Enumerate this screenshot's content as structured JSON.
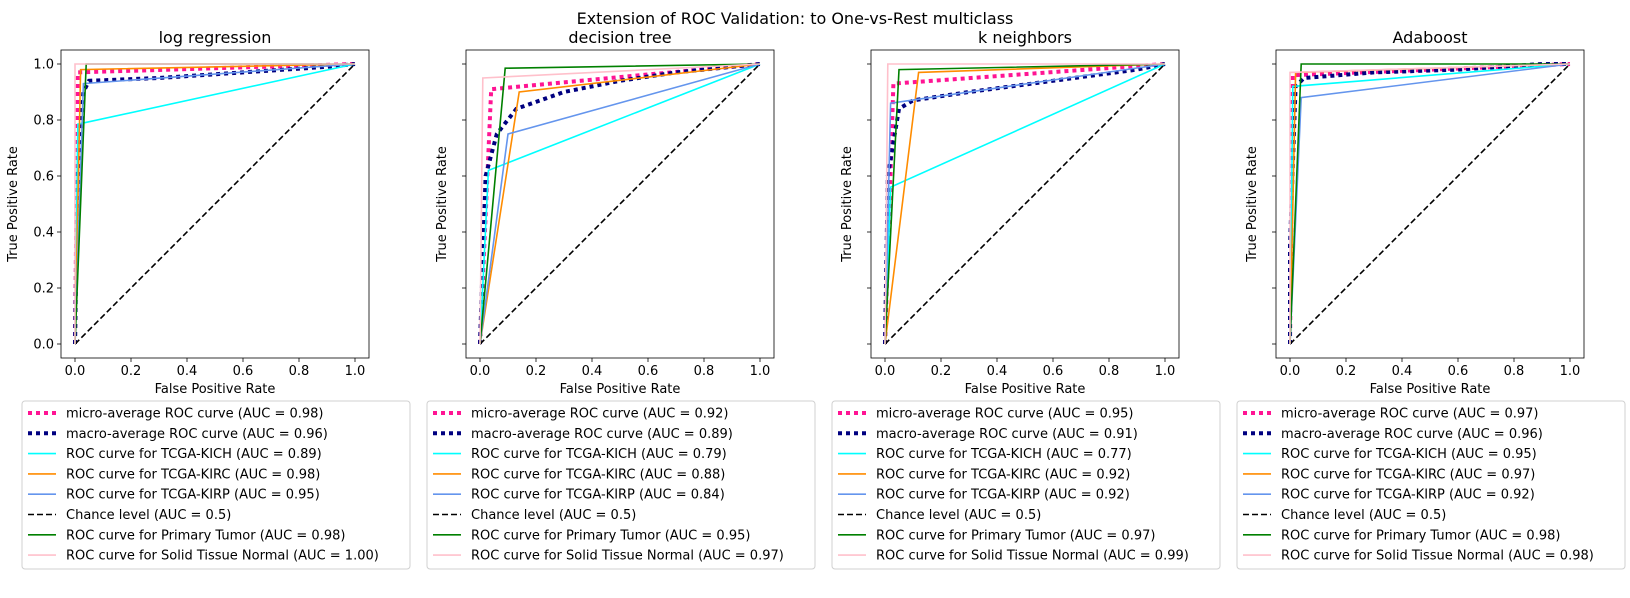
{
  "suptitle": "Extension of ROC Validation: to One-vs-Rest multiclass",
  "chart_data": [
    {
      "type": "line",
      "title": "log regression",
      "xlabel": "False Positive Rate",
      "ylabel": "True Positive Rate",
      "xlim": [
        -0.05,
        1.05
      ],
      "ylim": [
        -0.05,
        1.05
      ],
      "xticks": [
        "0.0",
        "0.2",
        "0.4",
        "0.6",
        "0.8",
        "1.0"
      ],
      "yticks": [
        "0.0",
        "0.2",
        "0.4",
        "0.6",
        "0.8",
        "1.0"
      ],
      "legend_position": "below",
      "series": [
        {
          "name": "micro-average ROC curve (AUC = 0.98)",
          "color": "#ff1493",
          "style": "dotted-thick",
          "x": [
            0,
            0.01,
            1
          ],
          "y": [
            0,
            0.97,
            1
          ]
        },
        {
          "name": "macro-average ROC curve (AUC = 0.96)",
          "color": "#000080",
          "style": "dotted-thick",
          "x": [
            0,
            0.01,
            0.03,
            0.05,
            0.3,
            0.6,
            0.9,
            1
          ],
          "y": [
            0,
            0.6,
            0.9,
            0.94,
            0.95,
            0.97,
            0.99,
            1
          ]
        },
        {
          "name": "ROC curve for TCGA-KICH (AUC = 0.89)",
          "color": "#00ffff",
          "style": "solid",
          "x": [
            0,
            0.01,
            1
          ],
          "y": [
            0,
            0.785,
            1
          ]
        },
        {
          "name": "ROC curve for TCGA-KIRC (AUC = 0.98)",
          "color": "#ff8c00",
          "style": "solid",
          "x": [
            0,
            0.02,
            1
          ],
          "y": [
            0,
            0.98,
            1
          ]
        },
        {
          "name": "ROC curve for TCGA-KIRP (AUC = 0.95)",
          "color": "#6495ed",
          "style": "solid",
          "x": [
            0,
            0.03,
            1
          ],
          "y": [
            0,
            0.93,
            1
          ]
        },
        {
          "name": "Chance level (AUC = 0.5)",
          "color": "#000000",
          "style": "dashed",
          "x": [
            0,
            1
          ],
          "y": [
            0,
            1
          ]
        },
        {
          "name": "ROC curve for Primary Tumor (AUC = 0.98)",
          "color": "#008000",
          "style": "solid",
          "x": [
            0,
            0.04,
            1
          ],
          "y": [
            0,
            1.0,
            1
          ]
        },
        {
          "name": "ROC curve for Solid Tissue Normal (AUC = 1.00)",
          "color": "#ffc0cb",
          "style": "solid",
          "x": [
            0,
            0.0,
            1
          ],
          "y": [
            0,
            1.0,
            1
          ]
        }
      ]
    },
    {
      "type": "line",
      "title": "decision tree",
      "xlabel": "False Positive Rate",
      "ylabel": "True Positive Rate",
      "xlim": [
        -0.05,
        1.05
      ],
      "ylim": [
        -0.05,
        1.05
      ],
      "xticks": [
        "0.0",
        "0.2",
        "0.4",
        "0.6",
        "0.8",
        "1.0"
      ],
      "yticks": [
        "0.0",
        "0.2",
        "0.4",
        "0.6",
        "0.8",
        "1.0"
      ],
      "legend_position": "below",
      "series": [
        {
          "name": "micro-average ROC curve (AUC = 0.92)",
          "color": "#ff1493",
          "style": "dotted-thick",
          "x": [
            0,
            0.04,
            1
          ],
          "y": [
            0,
            0.91,
            1
          ]
        },
        {
          "name": "macro-average ROC curve (AUC = 0.89)",
          "color": "#000080",
          "style": "dotted-thick",
          "x": [
            0,
            0.02,
            0.06,
            0.13,
            0.3,
            0.5,
            0.7,
            1
          ],
          "y": [
            0,
            0.6,
            0.75,
            0.84,
            0.9,
            0.94,
            0.97,
            1
          ]
        },
        {
          "name": "ROC curve for TCGA-KICH (AUC = 0.79)",
          "color": "#00ffff",
          "style": "solid",
          "x": [
            0,
            0.03,
            1
          ],
          "y": [
            0,
            0.62,
            1
          ]
        },
        {
          "name": "ROC curve for TCGA-KIRC (AUC = 0.88)",
          "color": "#ff8c00",
          "style": "solid",
          "x": [
            0,
            0.14,
            1
          ],
          "y": [
            0,
            0.9,
            1
          ]
        },
        {
          "name": "ROC curve for TCGA-KIRP (AUC = 0.84)",
          "color": "#6495ed",
          "style": "solid",
          "x": [
            0,
            0.1,
            1
          ],
          "y": [
            0,
            0.75,
            1
          ]
        },
        {
          "name": "Chance level (AUC = 0.5)",
          "color": "#000000",
          "style": "dashed",
          "x": [
            0,
            1
          ],
          "y": [
            0,
            1
          ]
        },
        {
          "name": "ROC curve for Primary Tumor (AUC = 0.95)",
          "color": "#008000",
          "style": "solid",
          "x": [
            0,
            0.09,
            1
          ],
          "y": [
            0,
            0.985,
            1
          ]
        },
        {
          "name": "ROC curve for Solid Tissue Normal (AUC = 0.97)",
          "color": "#ffc0cb",
          "style": "solid",
          "x": [
            0,
            0.01,
            1
          ],
          "y": [
            0,
            0.95,
            1
          ]
        }
      ]
    },
    {
      "type": "line",
      "title": "k neighbors",
      "xlabel": "False Positive Rate",
      "ylabel": "True Positive Rate",
      "xlim": [
        -0.05,
        1.05
      ],
      "ylim": [
        -0.05,
        1.05
      ],
      "xticks": [
        "0.0",
        "0.2",
        "0.4",
        "0.6",
        "0.8",
        "1.0"
      ],
      "yticks": [
        "0.0",
        "0.2",
        "0.4",
        "0.6",
        "0.8",
        "1.0"
      ],
      "legend_position": "below",
      "series": [
        {
          "name": "micro-average ROC curve (AUC = 0.95)",
          "color": "#ff1493",
          "style": "dotted-thick",
          "x": [
            0,
            0.03,
            1
          ],
          "y": [
            0,
            0.93,
            1
          ]
        },
        {
          "name": "macro-average ROC curve (AUC = 0.91)",
          "color": "#000080",
          "style": "dotted-thick",
          "x": [
            0,
            0.01,
            0.05,
            0.1,
            0.3,
            0.6,
            0.9,
            1
          ],
          "y": [
            0,
            0.6,
            0.84,
            0.87,
            0.9,
            0.94,
            0.98,
            1
          ]
        },
        {
          "name": "ROC curve for TCGA-KICH (AUC = 0.77)",
          "color": "#00ffff",
          "style": "solid",
          "x": [
            0,
            0.02,
            1
          ],
          "y": [
            0,
            0.56,
            1
          ]
        },
        {
          "name": "ROC curve for TCGA-KIRC (AUC = 0.92)",
          "color": "#ff8c00",
          "style": "solid",
          "x": [
            0,
            0.12,
            1
          ],
          "y": [
            0,
            0.97,
            1
          ]
        },
        {
          "name": "ROC curve for TCGA-KIRP (AUC = 0.92)",
          "color": "#6495ed",
          "style": "solid",
          "x": [
            0,
            0.02,
            1
          ],
          "y": [
            0,
            0.86,
            1
          ]
        },
        {
          "name": "Chance level (AUC = 0.5)",
          "color": "#000000",
          "style": "dashed",
          "x": [
            0,
            1
          ],
          "y": [
            0,
            1
          ]
        },
        {
          "name": "ROC curve for Primary Tumor (AUC = 0.97)",
          "color": "#008000",
          "style": "solid",
          "x": [
            0,
            0.05,
            1
          ],
          "y": [
            0,
            0.98,
            1
          ]
        },
        {
          "name": "ROC curve for Solid Tissue Normal (AUC = 0.99)",
          "color": "#ffc0cb",
          "style": "solid",
          "x": [
            0,
            0.01,
            1
          ],
          "y": [
            0,
            1.0,
            1
          ]
        }
      ]
    },
    {
      "type": "line",
      "title": "Adaboost",
      "xlabel": "False Positive Rate",
      "ylabel": "True Positive Rate",
      "xlim": [
        -0.05,
        1.05
      ],
      "ylim": [
        -0.05,
        1.05
      ],
      "xticks": [
        "0.0",
        "0.2",
        "0.4",
        "0.6",
        "0.8",
        "1.0"
      ],
      "yticks": [
        "0.0",
        "0.2",
        "0.4",
        "0.6",
        "0.8",
        "1.0"
      ],
      "legend_position": "below",
      "series": [
        {
          "name": "micro-average ROC curve (AUC = 0.97)",
          "color": "#ff1493",
          "style": "dotted-thick",
          "x": [
            0,
            0.01,
            1
          ],
          "y": [
            0,
            0.96,
            1
          ]
        },
        {
          "name": "macro-average ROC curve (AUC = 0.96)",
          "color": "#000080",
          "style": "dotted-thick",
          "x": [
            0,
            0.0,
            0.02,
            0.05,
            0.3,
            0.6,
            0.9,
            1
          ],
          "y": [
            0,
            0.35,
            0.92,
            0.95,
            0.97,
            0.98,
            1.0,
            1
          ]
        },
        {
          "name": "ROC curve for TCGA-KICH (AUC = 0.95)",
          "color": "#00ffff",
          "style": "solid",
          "x": [
            0,
            0.01,
            1
          ],
          "y": [
            0,
            0.92,
            1
          ]
        },
        {
          "name": "ROC curve for TCGA-KIRC (AUC = 0.97)",
          "color": "#ff8c00",
          "style": "solid",
          "x": [
            0,
            0.02,
            1
          ],
          "y": [
            0,
            0.97,
            1
          ]
        },
        {
          "name": "ROC curve for TCGA-KIRP (AUC = 0.92)",
          "color": "#6495ed",
          "style": "solid",
          "x": [
            0,
            0.04,
            1
          ],
          "y": [
            0,
            0.88,
            1
          ]
        },
        {
          "name": "Chance level (AUC = 0.5)",
          "color": "#000000",
          "style": "dashed",
          "x": [
            0,
            1
          ],
          "y": [
            0,
            1
          ]
        },
        {
          "name": "ROC curve for Primary Tumor (AUC = 0.98)",
          "color": "#008000",
          "style": "solid",
          "x": [
            0,
            0.04,
            1
          ],
          "y": [
            0,
            1.0,
            1
          ]
        },
        {
          "name": "ROC curve for Solid Tissue Normal (AUC = 0.98)",
          "color": "#ffc0cb",
          "style": "solid",
          "x": [
            0,
            0.0,
            1
          ],
          "y": [
            0,
            0.97,
            1
          ]
        }
      ]
    }
  ]
}
